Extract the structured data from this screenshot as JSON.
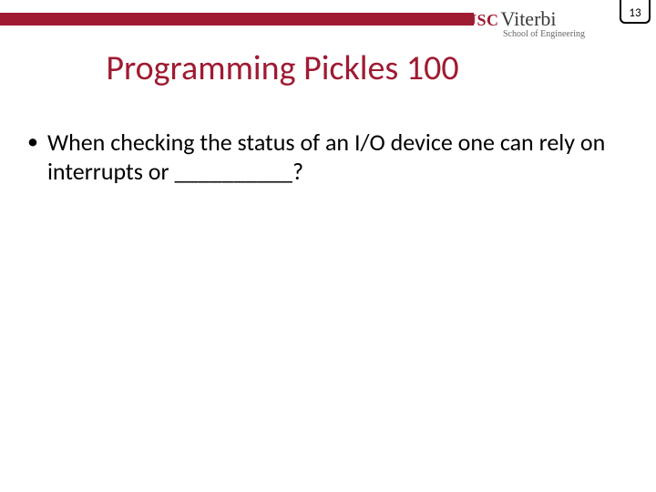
{
  "page_number": "13",
  "logo": {
    "usc": "USC",
    "viterbi": "Viterbi",
    "subtitle": "School of Engineering"
  },
  "title": "Programming Pickles 100",
  "bullets": [
    "When checking the status of an I/O device one can rely on interrupts or __________?"
  ],
  "colors": {
    "accent": "#9f1b32",
    "text": "#000000",
    "logo_gray": "#3a3a3a",
    "sub_gray": "#666666",
    "background": "#ffffff"
  },
  "typography": {
    "title_fontsize": 38,
    "body_fontsize": 26,
    "page_fontsize": 13
  }
}
